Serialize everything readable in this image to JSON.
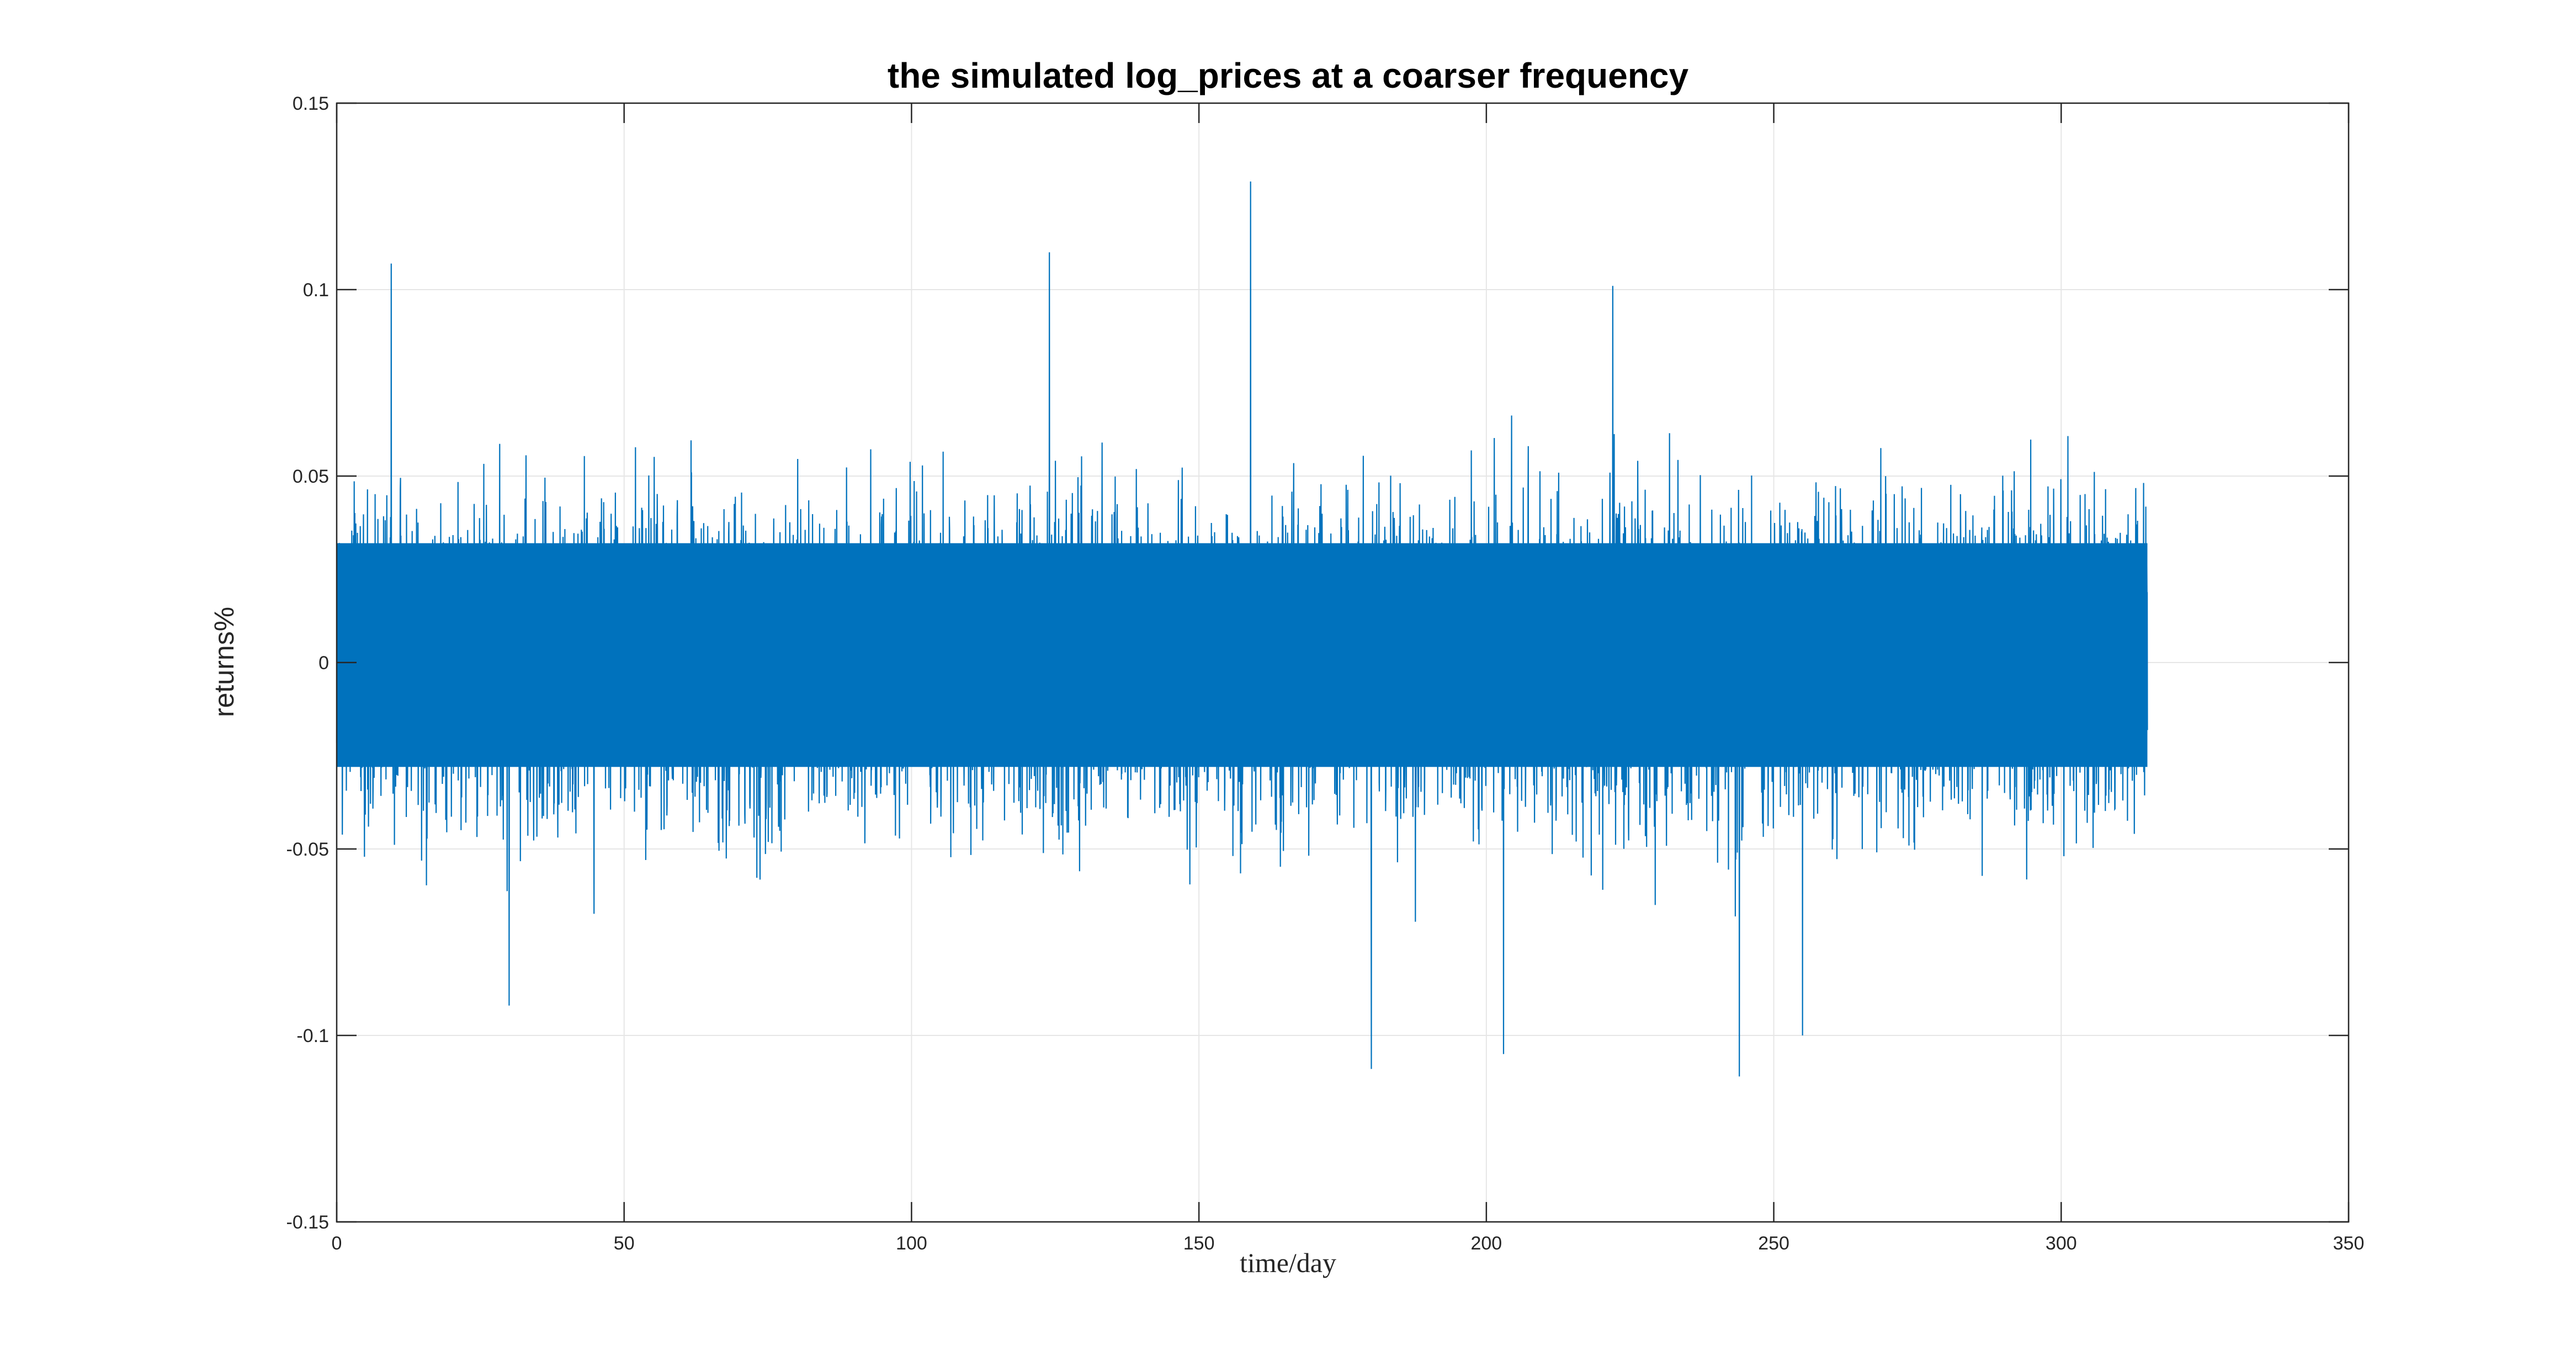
{
  "chart_data": {
    "type": "line",
    "title": "the simulated log_prices at a coarser frequency",
    "xlabel": "time/day",
    "ylabel": "returns%",
    "xlim": [
      0,
      350
    ],
    "ylim": [
      -0.15,
      0.15
    ],
    "x_ticks": [
      0,
      50,
      100,
      150,
      200,
      250,
      300,
      350
    ],
    "x_tick_labels": [
      "0",
      "50",
      "100",
      "150",
      "200",
      "250",
      "300",
      "350"
    ],
    "y_ticks": [
      -0.15,
      -0.1,
      -0.05,
      0,
      0.05,
      0.1,
      0.15
    ],
    "y_tick_labels": [
      "-0.15",
      "-0.1",
      "-0.05",
      "0",
      "0.05",
      "0.1",
      "0.15"
    ],
    "grid": true,
    "series": [
      {
        "color": "#0072BD",
        "x_range": [
          0,
          315
        ],
        "typical_band": [
          -0.05,
          0.06
        ],
        "notable_points": [
          {
            "x": 9.5,
            "y": 0.107
          },
          {
            "x": 124,
            "y": 0.11
          },
          {
            "x": 159,
            "y": 0.129
          },
          {
            "x": 222,
            "y": 0.101
          },
          {
            "x": 30,
            "y": -0.092
          },
          {
            "x": 180,
            "y": -0.109
          },
          {
            "x": 203,
            "y": -0.105
          },
          {
            "x": 244,
            "y": -0.111
          },
          {
            "x": 255,
            "y": -0.1
          }
        ]
      }
    ]
  }
}
